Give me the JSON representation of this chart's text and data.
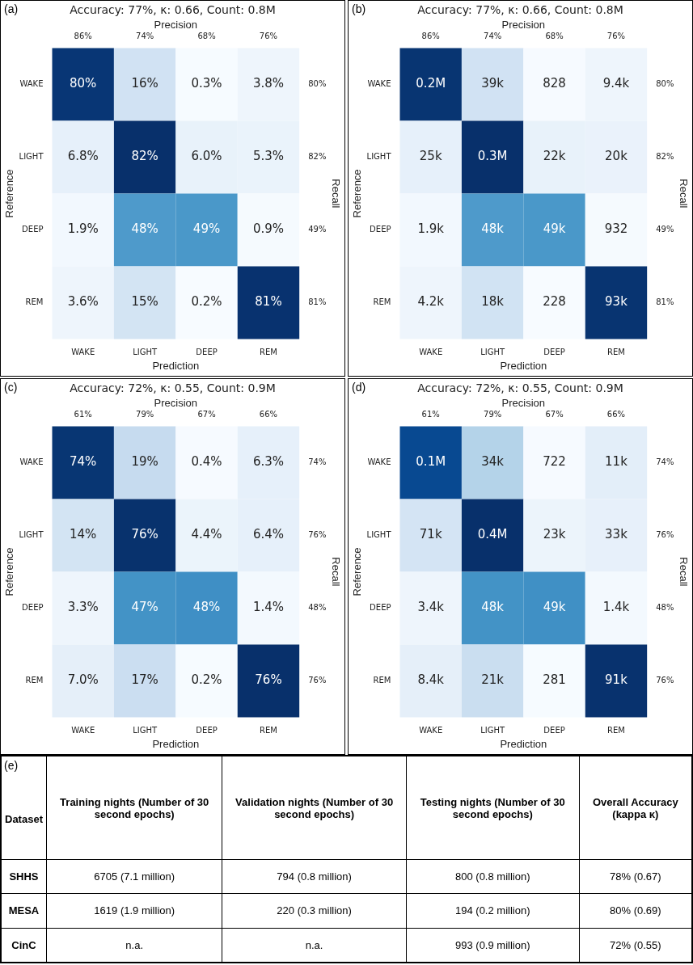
{
  "chart_data": [
    {
      "type": "heatmap",
      "title": "Accuracy: 77%, κ: 0.66, Count: 0.8M",
      "xlabel": "Prediction",
      "ylabel": "Reference",
      "y2label": "Recall",
      "x2label": "Precision",
      "categories": [
        "WAKE",
        "LIGHT",
        "DEEP",
        "REM"
      ],
      "y_categories": [
        "WAKE",
        "LIGHT",
        "DEEP",
        "REM"
      ],
      "y2_categories": [
        "80%",
        "82%",
        "49%",
        "81%"
      ],
      "cells": [
        [
          80,
          16,
          0.3,
          3.8
        ],
        [
          6.8,
          82,
          6.0,
          5.3
        ],
        [
          1.9,
          48,
          49,
          0.9
        ],
        [
          3.6,
          15,
          0.2,
          81
        ]
      ],
      "cell_labels": [
        [
          "80%",
          "16%",
          "0.3%",
          "3.8%"
        ],
        [
          "6.8%",
          "82%",
          "6.0%",
          "5.3%"
        ],
        [
          "1.9%",
          "48%",
          "49%",
          "0.9%"
        ],
        [
          "3.6%",
          "15%",
          "0.2%",
          "81%"
        ]
      ],
      "annotations": [
        "(a)",
        "86%",
        "74%",
        "68%",
        "76%"
      ]
    },
    {
      "type": "heatmap",
      "title": "Accuracy: 77%, κ: 0.66, Count: 0.8M",
      "xlabel": "Prediction",
      "ylabel": "Reference",
      "y2label": "Recall",
      "x2label": "Precision",
      "categories": [
        "WAKE",
        "LIGHT",
        "DEEP",
        "REM"
      ],
      "y_categories": [
        "WAKE",
        "LIGHT",
        "DEEP",
        "REM"
      ],
      "y2_categories": [
        "80%",
        "82%",
        "49%",
        "81%"
      ],
      "cells": [
        [
          200000,
          39000,
          828,
          9400
        ],
        [
          25000,
          300000,
          22000,
          20000
        ],
        [
          1900,
          48000,
          49000,
          932
        ],
        [
          4200,
          18000,
          228,
          93000
        ]
      ],
      "cell_labels": [
        [
          "0.2M",
          "39k",
          "828",
          "9.4k"
        ],
        [
          "25k",
          "0.3M",
          "22k",
          "20k"
        ],
        [
          "1.9k",
          "48k",
          "49k",
          "932"
        ],
        [
          "4.2k",
          "18k",
          "228",
          "93k"
        ]
      ],
      "annotations": [
        "(b)",
        "86%",
        "74%",
        "68%",
        "76%"
      ]
    },
    {
      "type": "heatmap",
      "title": "Accuracy: 72%, κ: 0.55, Count: 0.9M",
      "xlabel": "Prediction",
      "ylabel": "Reference",
      "y2label": "Recall",
      "x2label": "Precision",
      "categories": [
        "WAKE",
        "LIGHT",
        "DEEP",
        "REM"
      ],
      "y_categories": [
        "WAKE",
        "LIGHT",
        "DEEP",
        "REM"
      ],
      "y2_categories": [
        "74%",
        "76%",
        "48%",
        "76%"
      ],
      "cells": [
        [
          74,
          19,
          0.4,
          6.3
        ],
        [
          14,
          76,
          4.4,
          6.4
        ],
        [
          3.3,
          47,
          48,
          1.4
        ],
        [
          7.0,
          17,
          0.2,
          76
        ]
      ],
      "cell_labels": [
        [
          "74%",
          "19%",
          "0.4%",
          "6.3%"
        ],
        [
          "14%",
          "76%",
          "4.4%",
          "6.4%"
        ],
        [
          "3.3%",
          "47%",
          "48%",
          "1.4%"
        ],
        [
          "7.0%",
          "17%",
          "0.2%",
          "76%"
        ]
      ],
      "annotations": [
        "(c)",
        "61%",
        "79%",
        "67%",
        "66%"
      ]
    },
    {
      "type": "heatmap",
      "title": "Accuracy: 72%, κ: 0.55, Count: 0.9M",
      "xlabel": "Prediction",
      "ylabel": "Reference",
      "y2label": "Recall",
      "x2label": "Precision",
      "categories": [
        "WAKE",
        "LIGHT",
        "DEEP",
        "REM"
      ],
      "y_categories": [
        "WAKE",
        "LIGHT",
        "DEEP",
        "REM"
      ],
      "y2_categories": [
        "74%",
        "76%",
        "48%",
        "76%"
      ],
      "cells": [
        [
          100000,
          34000,
          722,
          11000
        ],
        [
          71000,
          400000,
          23000,
          33000
        ],
        [
          3400,
          48000,
          49000,
          1400
        ],
        [
          8400,
          21000,
          281,
          91000
        ]
      ],
      "cell_labels": [
        [
          "0.1M",
          "34k",
          "722",
          "11k"
        ],
        [
          "71k",
          "0.4M",
          "23k",
          "33k"
        ],
        [
          "3.4k",
          "48k",
          "49k",
          "1.4k"
        ],
        [
          "8.4k",
          "21k",
          "281",
          "91k"
        ]
      ],
      "annotations": [
        "(d)",
        "61%",
        "79%",
        "67%",
        "66%"
      ]
    },
    {
      "type": "other",
      "title": "(e)",
      "annotations": [
        "Dataset",
        "Training nights (Number of 30 second epochs)",
        "Validation nights (Number of 30 second epochs)",
        "Testing nights (Number of 30 second epochs)",
        "Overall Accuracy (kappa κ)",
        "SHHS",
        "6705 (7.1 million)",
        "794 (0.8 million)",
        "800 (0.8 million)",
        "78% (0.67)",
        "MESA",
        "1619 (1.9 million)",
        "220 (0.3 million)",
        "194 (0.2 million)",
        "80% (0.69)",
        "CinC",
        "n.a.",
        "n.a.",
        "993 (0.9 million)",
        "72% (0.55)"
      ]
    }
  ]
}
